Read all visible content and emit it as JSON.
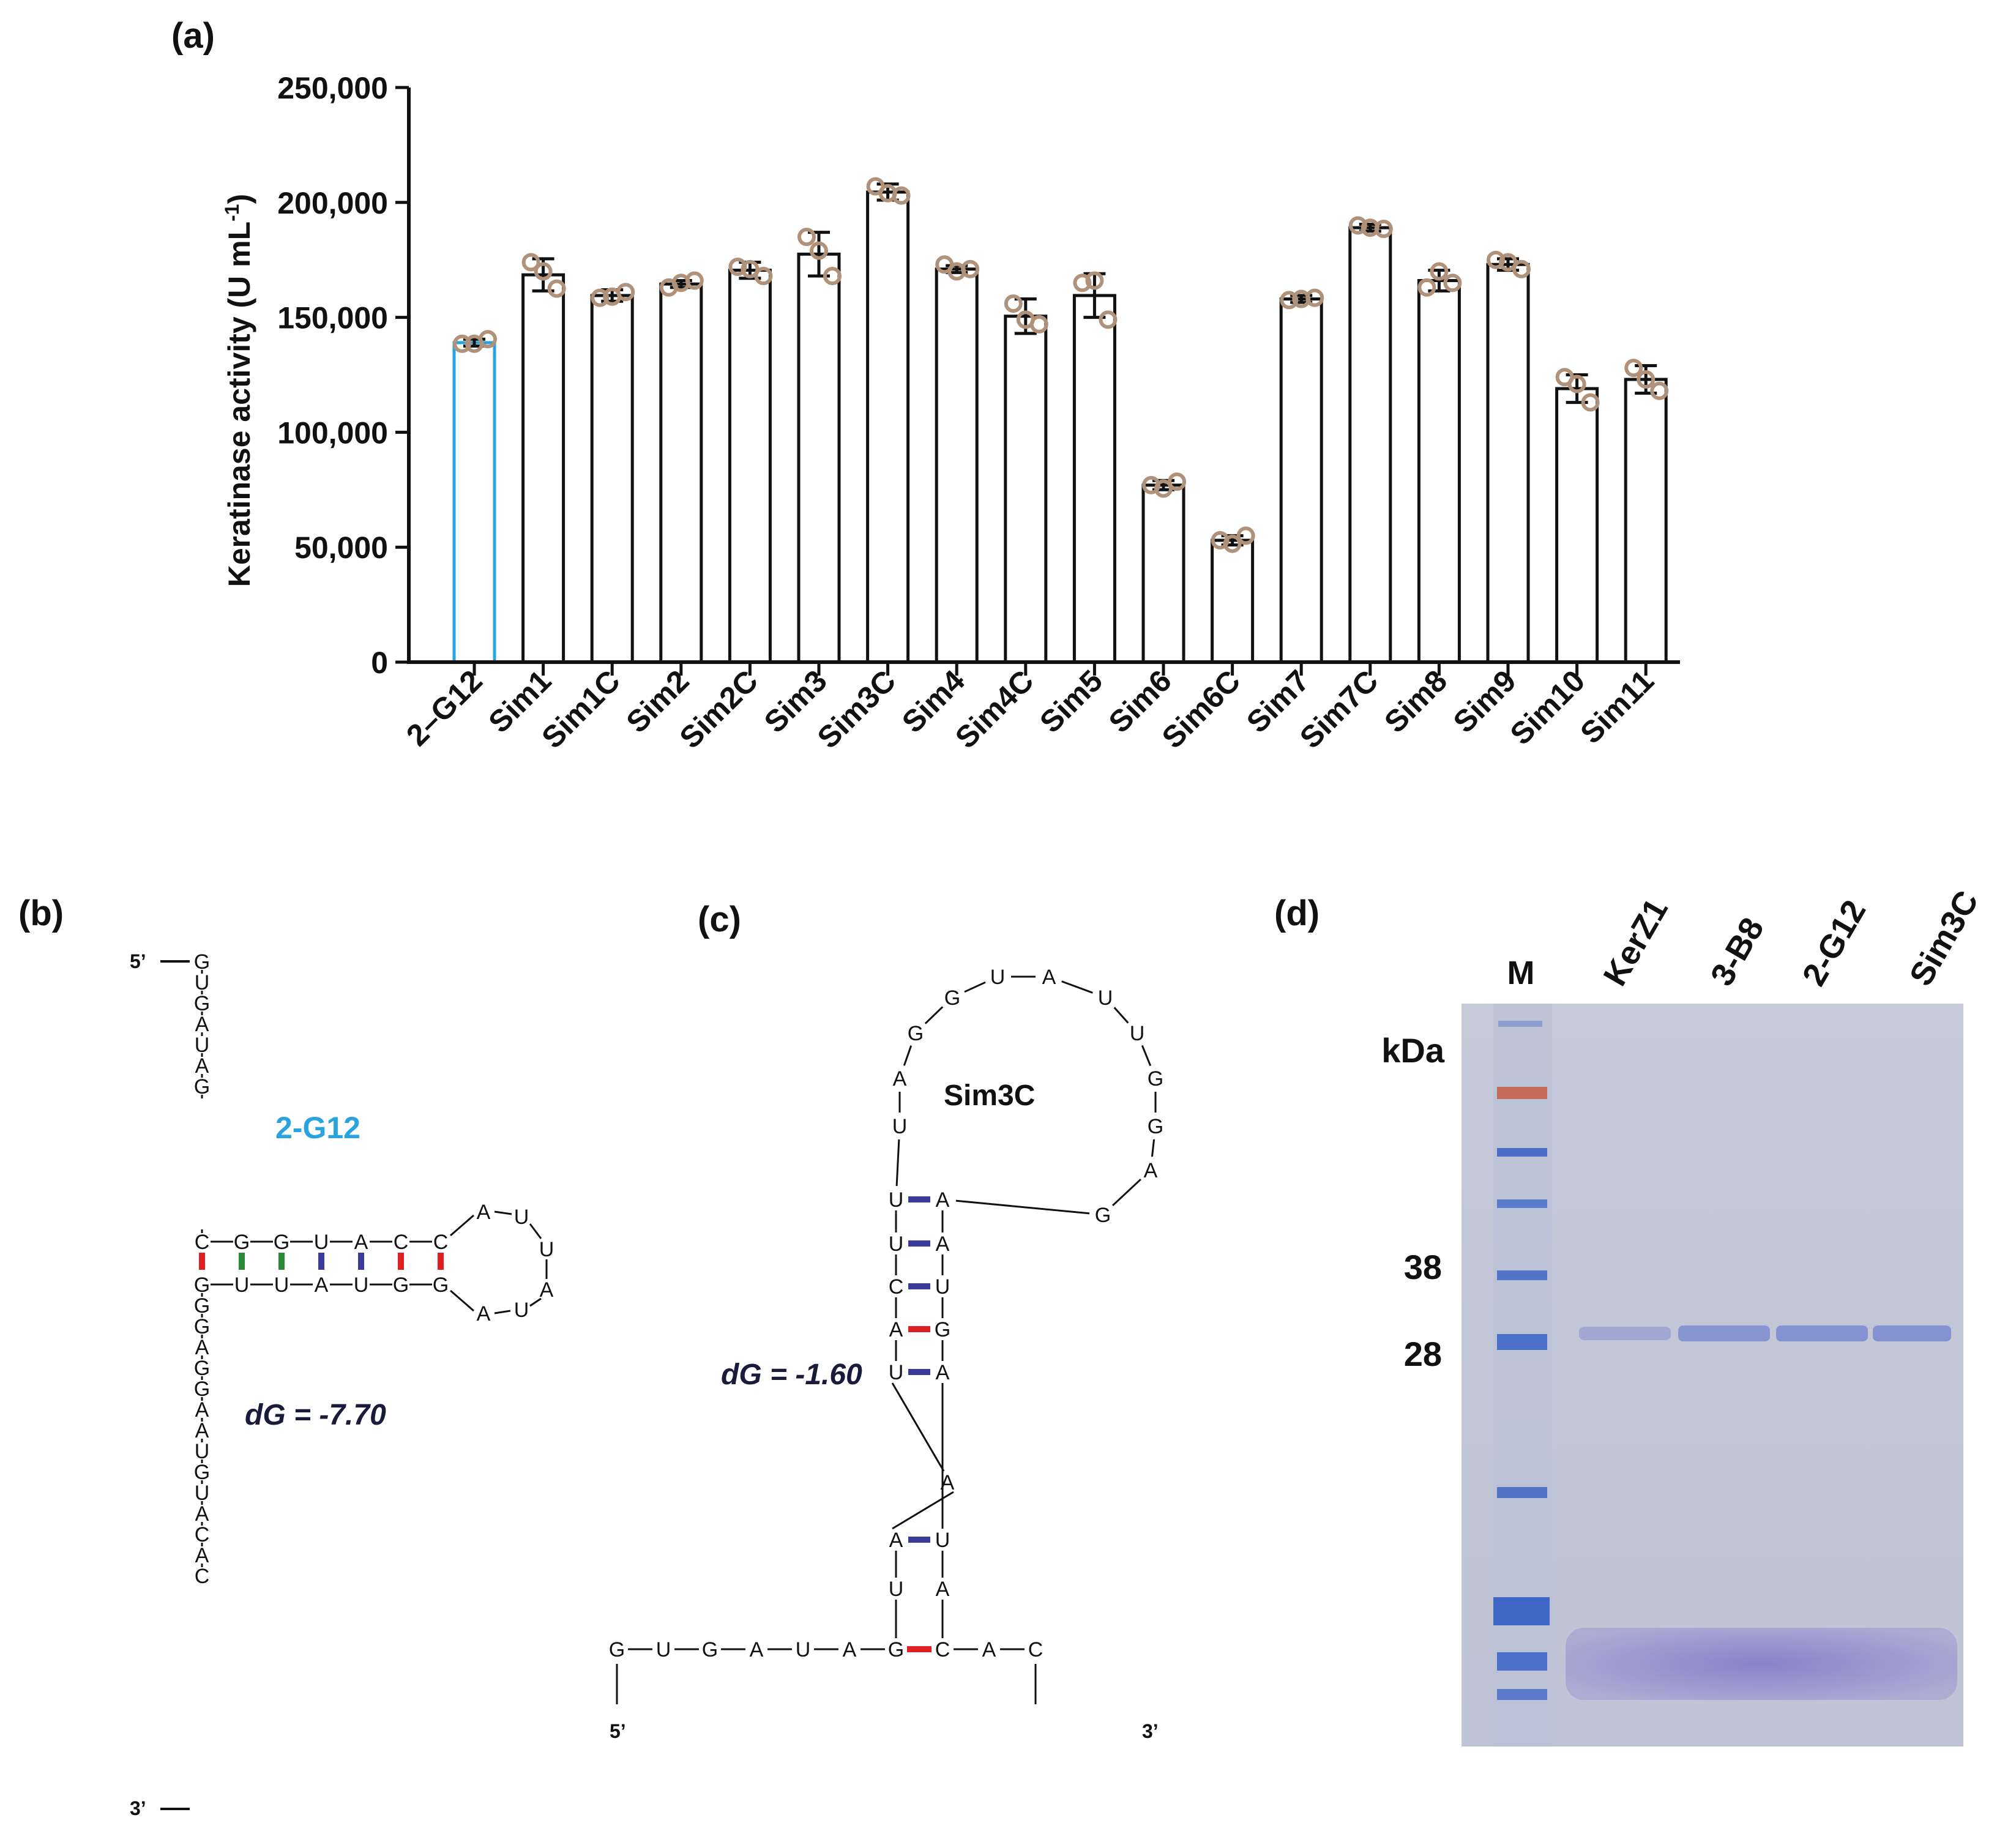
{
  "panels": {
    "a": "(a)",
    "b": "(b)",
    "c": "(c)",
    "d": "(d)"
  },
  "chart_data": {
    "type": "bar",
    "title": "",
    "xlabel": "",
    "ylabel": "Keratinase activity (U mL",
    "ylabel_sup": "-1",
    "ylabel_end": ")",
    "ylim": [
      0,
      250000
    ],
    "yticks": [
      "0",
      "50,000",
      "100,000",
      "150,000",
      "200,000",
      "250,000"
    ],
    "categories": [
      "2–G12",
      "Sim1",
      "Sim1C",
      "Sim2",
      "Sim2C",
      "Sim3",
      "Sim3C",
      "Sim4",
      "Sim4C",
      "Sim5",
      "Sim6",
      "Sim6C",
      "Sim7",
      "Sim7C",
      "Sim8",
      "Sim9",
      "Sim10",
      "Sim11"
    ],
    "values": [
      139000,
      168500,
      159500,
      164500,
      170500,
      177500,
      204500,
      171000,
      150500,
      159500,
      77000,
      53000,
      158000,
      189000,
      166000,
      173000,
      119000,
      123000
    ],
    "errors": [
      1500,
      7000,
      2500,
      1500,
      3500,
      9500,
      3500,
      1500,
      7500,
      9500,
      2000,
      2000,
      1500,
      1500,
      4500,
      2500,
      6000,
      6000
    ],
    "points": [
      [
        138500,
        140500,
        138500
      ],
      [
        174000,
        162500,
        170000
      ],
      [
        158500,
        161000,
        159000
      ],
      [
        163000,
        166000,
        165000
      ],
      [
        172000,
        168000,
        171000
      ],
      [
        185000,
        168000,
        179000
      ],
      [
        207000,
        203000,
        204000
      ],
      [
        173000,
        171000,
        170000
      ],
      [
        156000,
        147000,
        149000
      ],
      [
        165000,
        149000,
        166000
      ],
      [
        77000,
        78500,
        75500
      ],
      [
        53000,
        55000,
        51500
      ],
      [
        157500,
        158500,
        158000
      ],
      [
        190000,
        188500,
        189000
      ],
      [
        163000,
        165000,
        170000
      ],
      [
        175000,
        171000,
        174000
      ],
      [
        124000,
        113000,
        121000
      ],
      [
        128000,
        118000,
        123000
      ]
    ],
    "highlight_index": 0,
    "colors": {
      "bar": "#111111",
      "highlight": "#29a3e0",
      "points": "#b0927a",
      "error": "#111111"
    }
  },
  "rna_b": {
    "label": "2-G12",
    "label_color": "#29a3e0",
    "dG": "dG = -7.70",
    "five": "5’",
    "three": "3’",
    "top_stem": [
      "G",
      "U",
      "G",
      "A",
      "U",
      "A",
      "G"
    ],
    "bottom_stem": [
      "G",
      "G",
      "A",
      "G",
      "G",
      "A",
      "A",
      "U",
      "G",
      "U",
      "A",
      "C",
      "A",
      "C"
    ],
    "hairpin_top": [
      "C",
      "G",
      "G",
      "U",
      "A",
      "C",
      "C"
    ],
    "hairpin_bottom": [
      "G",
      "U",
      "U",
      "A",
      "U",
      "G",
      "G"
    ],
    "loop": [
      "A",
      "U",
      "U",
      "A",
      "U",
      "A"
    ],
    "pair_colors": [
      "#e02020",
      "#2a8a3a",
      "#2a8a3a",
      "#3a3a9a",
      "#3a3a9a",
      "#e02020",
      "#e02020"
    ]
  },
  "rna_c": {
    "label": "Sim3C",
    "dG": "dG = -1.60",
    "five": "5’",
    "three": "3’",
    "bottom": [
      "G",
      "U",
      "G",
      "A",
      "U",
      "A",
      "G",
      "C",
      "A",
      "C"
    ],
    "left_stem": [
      "U",
      "A",
      "U",
      "A",
      "C",
      "U",
      "U"
    ],
    "right_stem": [
      "A",
      "U",
      "A",
      "G",
      "U",
      "A",
      "A"
    ],
    "bulge": "A",
    "loop": [
      "G",
      "A",
      "G",
      "G",
      "U",
      "U",
      "A",
      "U",
      "G",
      "G",
      "A",
      "U"
    ],
    "pair_colors": [
      "#e02020",
      "#3a3a9a",
      "#3a3a9a",
      "#e02020",
      "#3a3a9a",
      "#3a3a9a",
      "#3a3a9a"
    ]
  },
  "gel": {
    "lanes": [
      "M",
      "KerZ1",
      "3-B8",
      "2-G12",
      "Sim3C"
    ],
    "unit": "kDa",
    "markers": [
      "38",
      "28"
    ]
  }
}
